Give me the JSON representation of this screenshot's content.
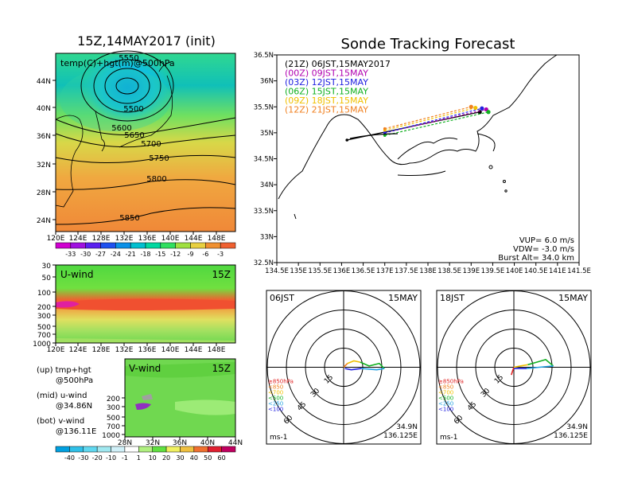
{
  "left": {
    "title": "15Z,14MAY2017 (init)",
    "map_label": "temp(C)+hgt(m)@500hPa",
    "lat_ticks": [
      "44N",
      "40N",
      "36N",
      "32N",
      "28N",
      "24N"
    ],
    "lon_ticks": [
      "120E",
      "124E",
      "128E",
      "132E",
      "136E",
      "140E",
      "144E",
      "148E"
    ],
    "contour_labels": [
      "5500",
      "5550",
      "5600",
      "5650",
      "5700",
      "5750",
      "5800",
      "5850"
    ],
    "temp_cbar_labels": [
      "-33",
      "-30",
      "-27",
      "-24",
      "-21",
      "-18",
      "-15",
      "-12",
      "-9",
      "-6",
      "-3"
    ],
    "temp_cbar_colors": [
      "#d000d0",
      "#a010e0",
      "#5a20f0",
      "#1e50f0",
      "#0a90e8",
      "#00c0d0",
      "#00d8a0",
      "#30e060",
      "#a0e040",
      "#e8d040",
      "#f09030",
      "#f06030"
    ],
    "uwind": {
      "label": "U-wind",
      "time": "15Z",
      "p_ticks": [
        "30",
        "50",
        "100",
        "200",
        "300",
        "500",
        "700",
        "1000"
      ],
      "lon_ticks": [
        "120E",
        "124E",
        "128E",
        "132E",
        "136E",
        "140E",
        "144E",
        "148E"
      ]
    },
    "vwind": {
      "label": "V-wind",
      "time": "15Z",
      "p_ticks": [
        "200",
        "300",
        "500",
        "700",
        "1000"
      ],
      "lat_ticks": [
        "28N",
        "32N",
        "36N",
        "40N",
        "44N"
      ]
    },
    "legend": [
      "(up) tmp+hgt",
      "@500hPa",
      "(mid) u-wind",
      "@34.86N",
      "(bot) v-wind",
      "@136.11E"
    ],
    "wind_cbar_labels": [
      "-40",
      "-30",
      "-20",
      "-10",
      "-1",
      "1",
      "10",
      "20",
      "30",
      "40",
      "50",
      "60"
    ],
    "wind_cbar_colors": [
      "#00a0e0",
      "#30c0e8",
      "#60d8f0",
      "#a0e8f0",
      "#d0f0f8",
      "#ffffff",
      "#b0f080",
      "#60e040",
      "#f0f060",
      "#f0c040",
      "#f07030",
      "#e02030",
      "#c00060"
    ]
  },
  "track": {
    "title": "Sonde Tracking Forecast",
    "lat_ticks": [
      "36.5N",
      "36N",
      "35.5N",
      "35N",
      "34.5N",
      "34N",
      "33.5N",
      "33N",
      "32.5N"
    ],
    "lon_ticks": [
      "134.5E",
      "135E",
      "135.5E",
      "136E",
      "136.5E",
      "137E",
      "137.5E",
      "138E",
      "138.5E",
      "139E",
      "139.5E",
      "140E",
      "140.5E",
      "141E",
      "141.5E"
    ],
    "legend": [
      {
        "text": "(21Z)  06JST,15MAY2017",
        "color": "#000000"
      },
      {
        "text": "(00Z)  09JST,15MAY",
        "color": "#b000b0"
      },
      {
        "text": "(03Z)  12JST,15MAY",
        "color": "#2020e0"
      },
      {
        "text": "(06Z)  15JST,15MAY",
        "color": "#10b020"
      },
      {
        "text": "(09Z)  18JST,15MAY",
        "color": "#f0c000"
      },
      {
        "text": "(12Z)  21JST,15MAY",
        "color": "#f08020"
      }
    ],
    "params": [
      "VUP=  6.0  m/s",
      "VDW= -3.0  m/s",
      "Burst Alt=  34.0  km"
    ]
  },
  "hodo_left": {
    "time": "06JST",
    "date": "15MAY",
    "rings": [
      "15",
      "30",
      "45",
      "60"
    ],
    "unit": "ms-1",
    "lat": "34.9N",
    "lon": "136.125E",
    "levels": [
      {
        "t": "≥850hPa",
        "c": "#e02020"
      },
      {
        "t": "<850",
        "c": "#f08020"
      },
      {
        "t": "<700",
        "c": "#f0c000"
      },
      {
        "t": "<500",
        "c": "#10b020"
      },
      {
        "t": "<250",
        "c": "#20a0e0"
      },
      {
        "t": "<100",
        "c": "#2020e0"
      }
    ]
  },
  "hodo_right": {
    "time": "18JST",
    "date": "15MAY",
    "rings": [
      "15",
      "30",
      "45",
      "60"
    ],
    "unit": "ms-1",
    "lat": "34.9N",
    "lon": "136.125E",
    "levels": [
      {
        "t": "≥850hPa",
        "c": "#e02020"
      },
      {
        "t": "<850",
        "c": "#f08020"
      },
      {
        "t": "<700",
        "c": "#f0c000"
      },
      {
        "t": "<500",
        "c": "#10b020"
      },
      {
        "t": "<250",
        "c": "#20a0e0"
      },
      {
        "t": "<100",
        "c": "#2020e0"
      }
    ]
  },
  "chart_data": [
    {
      "type": "heatmap",
      "title": "15Z,14MAY2017 (init)",
      "subtitle": "temp(C)+hgt(m)@500hPa",
      "xlim": [
        120,
        150
      ],
      "ylim": [
        22,
        48
      ],
      "contours": [
        {
          "level": 5500
        },
        {
          "level": 5550
        },
        {
          "level": 5600
        },
        {
          "level": 5650
        },
        {
          "level": 5700
        },
        {
          "level": 5750
        },
        {
          "level": 5800
        },
        {
          "level": 5850
        }
      ]
    },
    {
      "type": "line",
      "title": "Sonde Tracking Forecast",
      "xlim": [
        134.5,
        141.5
      ],
      "ylim": [
        32.5,
        36.5
      ],
      "series": [
        {
          "name": "(21Z) 06JST,15MAY2017",
          "launch": [
            136.125,
            34.86
          ],
          "landing": [
            139.2,
            35.4
          ]
        },
        {
          "name": "(00Z) 09JST,15MAY",
          "launch": [
            137.0,
            35.0
          ],
          "landing": [
            139.35,
            35.45
          ]
        },
        {
          "name": "(03Z) 12JST,15MAY",
          "launch": [
            137.0,
            35.0
          ],
          "landing": [
            139.25,
            35.47
          ]
        },
        {
          "name": "(06Z) 15JST,15MAY",
          "launch": [
            137.0,
            34.95
          ],
          "landing": [
            139.4,
            35.4
          ]
        },
        {
          "name": "(09Z) 18JST,15MAY",
          "launch": [
            137.0,
            35.05
          ],
          "landing": [
            139.1,
            35.48
          ]
        },
        {
          "name": "(12Z) 21JST,15MAY",
          "launch": [
            137.0,
            35.08
          ],
          "landing": [
            139.0,
            35.5
          ]
        }
      ]
    },
    {
      "type": "line",
      "title": "06JST 15MAY hodograph",
      "series": [
        {
          "name": "<850",
          "points": [
            [
              0,
              0
            ],
            [
              3,
              3
            ]
          ]
        },
        {
          "name": "<700",
          "points": [
            [
              3,
              3
            ],
            [
              8,
              5
            ],
            [
              13,
              4
            ]
          ]
        },
        {
          "name": "<500",
          "points": [
            [
              13,
              4
            ],
            [
              20,
              1
            ],
            [
              28,
              3
            ],
            [
              32,
              -1
            ]
          ]
        },
        {
          "name": "<250",
          "points": [
            [
              32,
              -1
            ],
            [
              26,
              -2
            ],
            [
              14,
              -1
            ]
          ]
        },
        {
          "name": "<100",
          "points": [
            [
              14,
              -1
            ],
            [
              6,
              -2
            ],
            [
              1,
              -1
            ]
          ]
        }
      ]
    },
    {
      "type": "line",
      "title": "18JST 15MAY hodograph",
      "series": [
        {
          "name": "≥850hPa",
          "points": [
            [
              -2,
              -6
            ],
            [
              0,
              0
            ]
          ]
        },
        {
          "name": "<700",
          "points": [
            [
              0,
              0
            ],
            [
              5,
              1
            ],
            [
              11,
              2
            ]
          ]
        },
        {
          "name": "<500",
          "points": [
            [
              11,
              2
            ],
            [
              18,
              4
            ],
            [
              25,
              6
            ],
            [
              31,
              1
            ]
          ]
        },
        {
          "name": "<250",
          "points": [
            [
              31,
              1
            ],
            [
              20,
              0
            ],
            [
              10,
              -1
            ]
          ]
        },
        {
          "name": "<100",
          "points": [
            [
              10,
              -1
            ],
            [
              4,
              -1
            ],
            [
              0,
              -1
            ]
          ]
        }
      ]
    }
  ]
}
